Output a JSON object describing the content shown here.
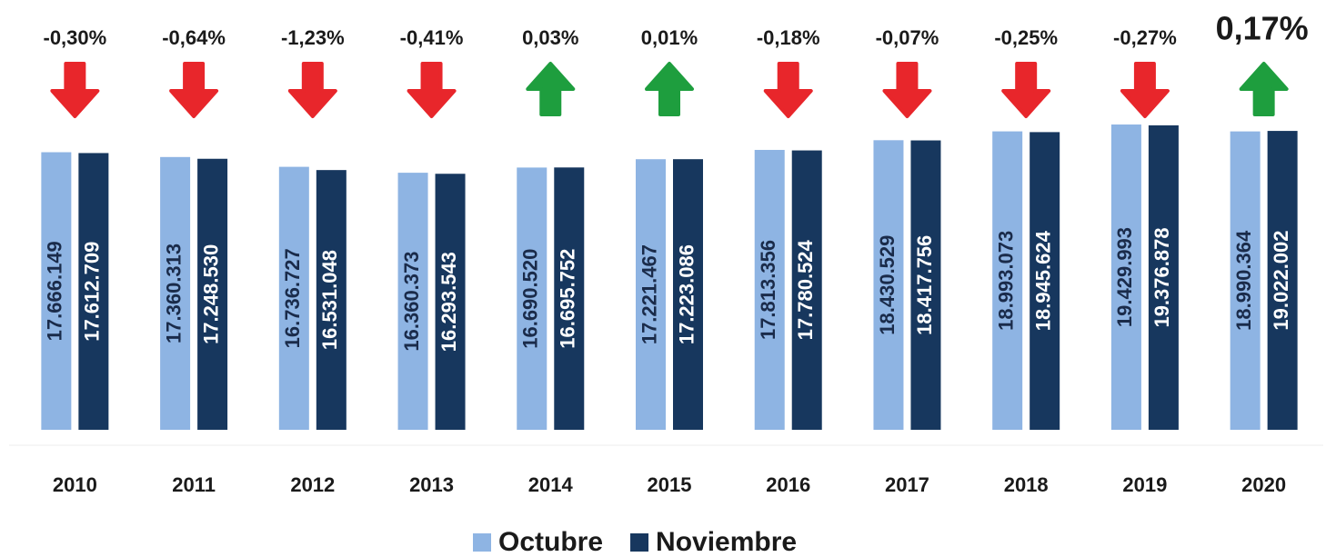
{
  "chart_data": {
    "type": "bar",
    "categories": [
      "2010",
      "2011",
      "2012",
      "2013",
      "2014",
      "2015",
      "2016",
      "2017",
      "2018",
      "2019",
      "2020"
    ],
    "series": [
      {
        "name": "Octubre",
        "color": "#8eb4e3",
        "values": [
          17666149,
          17360313,
          16736727,
          16360373,
          16690520,
          17221467,
          17813356,
          18430529,
          18993073,
          19429993,
          18990364
        ],
        "value_labels": [
          "17.666.149",
          "17.360.313",
          "16.736.727",
          "16.360.373",
          "16.690.520",
          "17.221.467",
          "17.813.356",
          "18.430.529",
          "18.993.073",
          "19.429.993",
          "18.990.364"
        ]
      },
      {
        "name": "Noviembre",
        "color": "#17375e",
        "values": [
          17612709,
          17248530,
          16531048,
          16293543,
          16695752,
          17223086,
          17780524,
          18417756,
          18945624,
          19376878,
          19022002
        ],
        "value_labels": [
          "17.612.709",
          "17.248.530",
          "16.531.048",
          "16.293.543",
          "16.695.752",
          "17.223.086",
          "17.780.524",
          "18.417.756",
          "18.945.624",
          "19.376.878",
          "19.022.002"
        ]
      }
    ],
    "changes": {
      "values": [
        -0.3,
        -0.64,
        -1.23,
        -0.41,
        0.03,
        0.01,
        -0.18,
        -0.07,
        -0.25,
        -0.27,
        0.17
      ],
      "value_labels": [
        "-0,30%",
        "-0,64%",
        "-1,23%",
        "-0,41%",
        "0,03%",
        "0,01%",
        "-0,18%",
        "-0,07%",
        "-0,25%",
        "-0,27%",
        "0,17%"
      ],
      "up_color": "#1e9e3e",
      "down_color": "#e8262b"
    },
    "ylim": [
      0,
      24000000
    ],
    "legend": "bottom"
  }
}
